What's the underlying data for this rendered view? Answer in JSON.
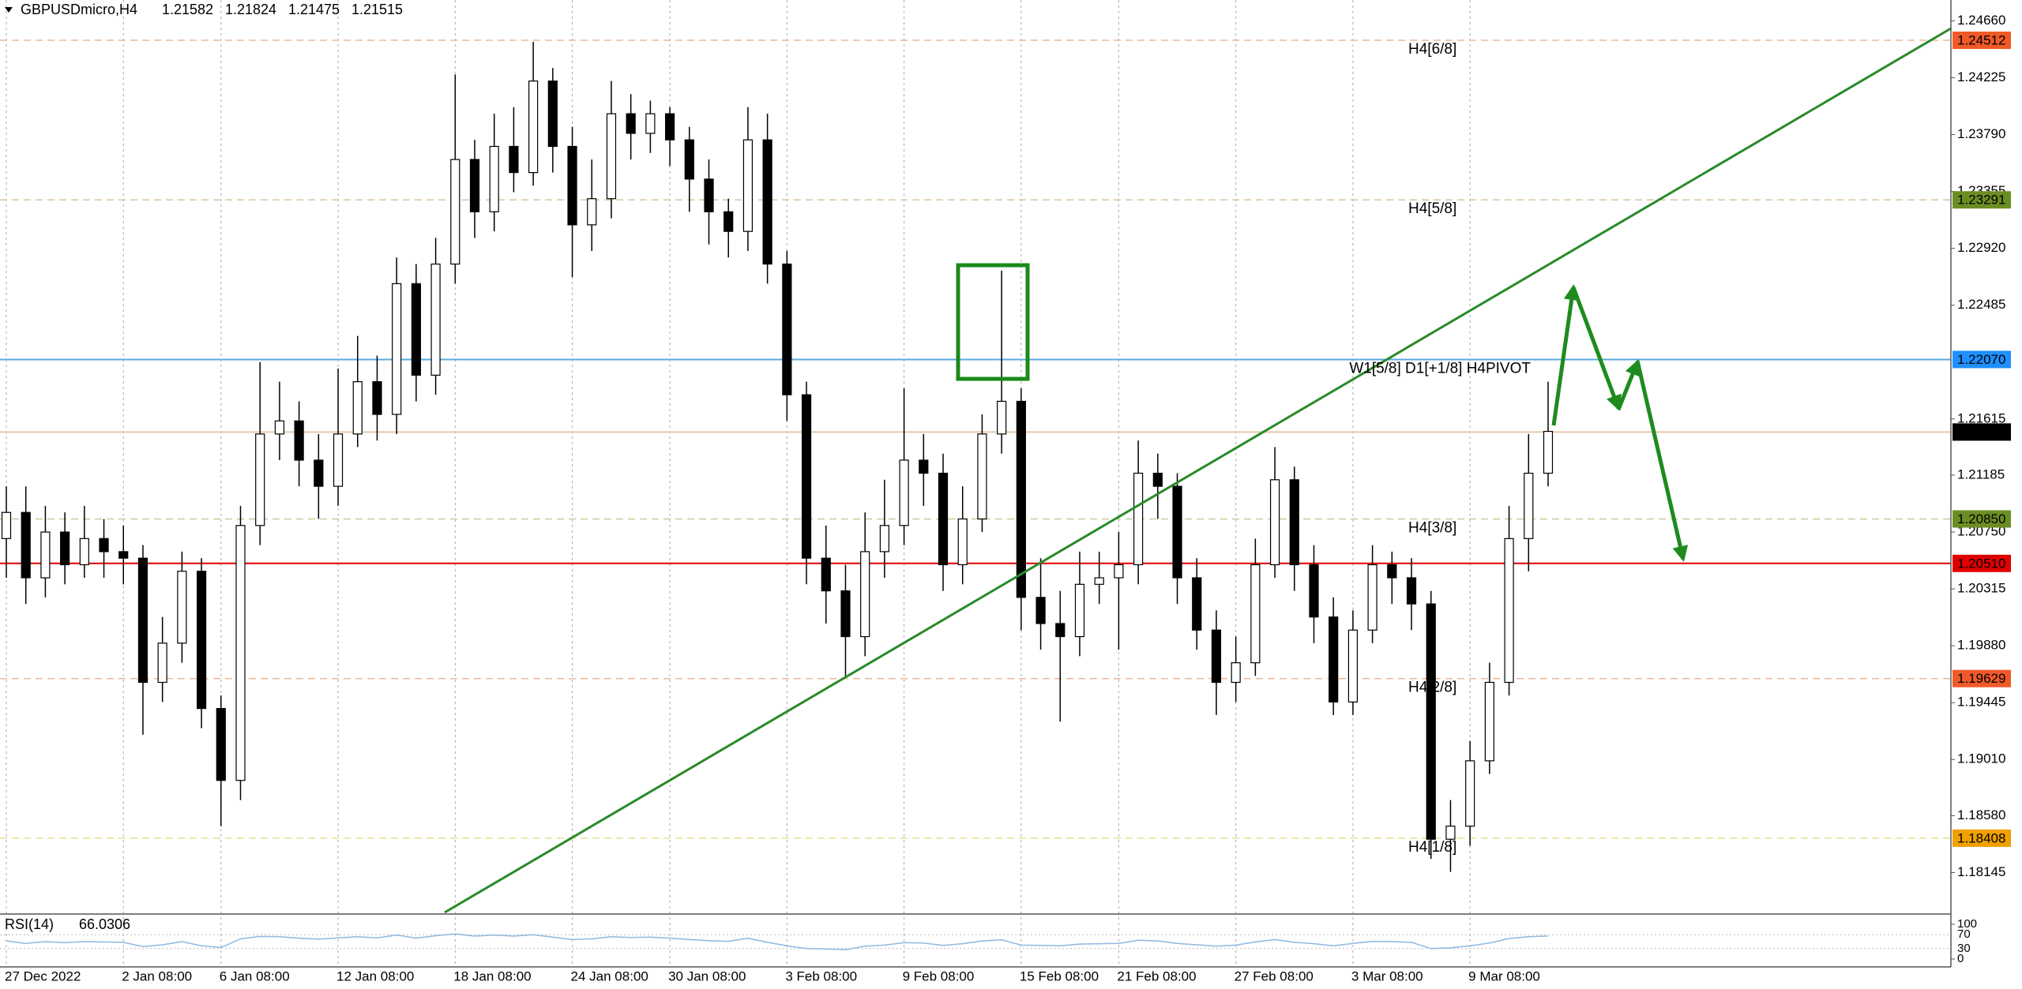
{
  "chart_data": {
    "type": "candlestick",
    "symbol": "GBPUSDmicro,H4",
    "quote": [
      1.21582,
      1.21824,
      1.21475,
      1.21515
    ],
    "categories": [
      "27 Dec 2022",
      null,
      null,
      null,
      null,
      null,
      "2 Jan 08:00",
      null,
      null,
      null,
      null,
      "6 Jan 08:00",
      null,
      null,
      null,
      null,
      null,
      "12 Jan 08:00",
      null,
      null,
      null,
      null,
      null,
      "18 Jan 08:00",
      null,
      null,
      null,
      null,
      null,
      "24 Jan 08:00",
      null,
      null,
      null,
      null,
      "30 Jan 08:00",
      null,
      null,
      null,
      null,
      null,
      "3 Feb 08:00",
      null,
      null,
      null,
      null,
      null,
      "9 Feb 08:00",
      null,
      null,
      null,
      null,
      null,
      "15 Feb 08:00",
      null,
      null,
      null,
      null,
      "21 Feb 08:00",
      null,
      null,
      null,
      null,
      null,
      "27 Feb 08:00",
      null,
      null,
      null,
      null,
      null,
      "3 Mar 08:00",
      null,
      null,
      null,
      null,
      null,
      "9 Mar 08:00",
      null,
      null,
      null,
      null
    ],
    "open": [
      1.207,
      1.209,
      1.204,
      1.2075,
      1.205,
      1.207,
      1.206,
      1.2055,
      1.196,
      1.199,
      1.2045,
      1.194,
      1.1885,
      1.208,
      1.215,
      1.216,
      1.213,
      1.211,
      1.215,
      1.219,
      1.2165,
      1.2265,
      1.2195,
      1.228,
      1.236,
      1.232,
      1.237,
      1.235,
      1.242,
      1.237,
      1.231,
      1.233,
      1.2395,
      1.238,
      1.2395,
      1.2375,
      1.2345,
      1.232,
      1.2305,
      1.2375,
      1.228,
      1.218,
      1.2055,
      1.203,
      1.1995,
      1.206,
      1.208,
      1.213,
      1.212,
      1.205,
      1.2085,
      1.215,
      1.2175,
      1.2025,
      1.2005,
      1.1995,
      1.2035,
      1.204,
      1.205,
      1.212,
      1.211,
      1.204,
      1.2,
      1.196,
      1.1975,
      1.205,
      1.2115,
      1.205,
      1.201,
      1.1945,
      1.2,
      1.205,
      1.204,
      1.202,
      1.184,
      1.185,
      1.19,
      1.196,
      1.207,
      1.212
    ],
    "high": [
      1.211,
      1.211,
      1.2095,
      1.209,
      1.2095,
      1.2085,
      1.208,
      1.2065,
      1.201,
      1.206,
      1.2055,
      1.195,
      1.2095,
      1.2205,
      1.219,
      1.2175,
      1.215,
      1.22,
      1.2225,
      1.221,
      1.2285,
      1.228,
      1.23,
      1.2425,
      1.2375,
      1.2395,
      1.24,
      1.245,
      1.243,
      1.2385,
      1.236,
      1.242,
      1.241,
      1.2405,
      1.24,
      1.2385,
      1.236,
      1.233,
      1.24,
      1.2395,
      1.229,
      1.219,
      1.208,
      1.205,
      1.209,
      1.2115,
      1.2185,
      1.215,
      1.2135,
      1.211,
      1.2165,
      1.2275,
      1.2185,
      1.2055,
      1.203,
      1.206,
      1.206,
      1.2075,
      1.2145,
      1.2135,
      1.212,
      1.2055,
      1.2015,
      1.1995,
      1.207,
      1.214,
      1.2125,
      1.2065,
      1.2025,
      1.2015,
      1.2065,
      1.206,
      1.2055,
      1.203,
      1.187,
      1.1915,
      1.1975,
      1.2095,
      1.215,
      1.219
    ],
    "low": [
      1.204,
      1.202,
      1.2025,
      1.2035,
      1.204,
      1.204,
      1.2035,
      1.192,
      1.1945,
      1.1975,
      1.1925,
      1.185,
      1.187,
      1.2065,
      1.213,
      1.211,
      1.2085,
      1.2095,
      1.214,
      1.2145,
      1.215,
      1.2175,
      1.218,
      1.2265,
      1.23,
      1.2305,
      1.2335,
      1.234,
      1.235,
      1.227,
      1.229,
      1.2315,
      1.236,
      1.2365,
      1.2355,
      1.232,
      1.2295,
      1.2285,
      1.229,
      1.2265,
      1.216,
      1.2035,
      1.2005,
      1.1965,
      1.198,
      1.204,
      1.2065,
      1.2095,
      1.203,
      1.2035,
      1.2075,
      1.2135,
      1.2,
      1.1985,
      1.193,
      1.198,
      1.202,
      1.1985,
      1.2035,
      1.2085,
      1.202,
      1.1985,
      1.1935,
      1.1945,
      1.1965,
      1.204,
      1.203,
      1.199,
      1.1935,
      1.1935,
      1.199,
      1.202,
      1.2,
      1.1825,
      1.1815,
      1.1835,
      1.189,
      1.195,
      1.2045,
      1.211
    ],
    "close": [
      1.209,
      1.204,
      1.2075,
      1.205,
      1.207,
      1.206,
      1.2055,
      1.196,
      1.199,
      1.2045,
      1.194,
      1.1885,
      1.208,
      1.215,
      1.216,
      1.213,
      1.211,
      1.215,
      1.219,
      1.2165,
      1.2265,
      1.2195,
      1.228,
      1.236,
      1.232,
      1.237,
      1.235,
      1.242,
      1.237,
      1.231,
      1.233,
      1.2395,
      1.238,
      1.2395,
      1.2375,
      1.2345,
      1.232,
      1.2305,
      1.2375,
      1.228,
      1.218,
      1.2055,
      1.203,
      1.1995,
      1.206,
      1.208,
      1.213,
      1.212,
      1.205,
      1.2085,
      1.215,
      1.2175,
      1.2025,
      1.2005,
      1.1995,
      1.2035,
      1.204,
      1.205,
      1.212,
      1.211,
      1.204,
      1.2,
      1.196,
      1.1975,
      1.205,
      1.2115,
      1.205,
      1.201,
      1.1945,
      1.2,
      1.205,
      1.204,
      1.202,
      1.184,
      1.185,
      1.19,
      1.196,
      1.207,
      1.212,
      1.2152
    ],
    "ylim": [
      1.1784,
      1.2482
    ],
    "yticks": [
      {
        "value": 1.2466,
        "label": "1.24660"
      },
      1.24225,
      {
        "value": 1.2379,
        "label": "1.23790"
      },
      1.23355,
      {
        "value": 1.2292,
        "label": "1.22920"
      },
      1.22485,
      1.21615,
      1.21185,
      {
        "value": 1.2075,
        "label": "1.20750"
      },
      1.20315,
      {
        "value": 1.1988,
        "label": "1.19880"
      },
      1.19445,
      {
        "value": 1.1901,
        "label": "1.19010"
      },
      {
        "value": 1.1858,
        "label": "1.18580"
      },
      1.18145
    ],
    "levels": [
      {
        "value": 1.24512,
        "text": "H4[6/8]",
        "line_color": "#e8b89a",
        "text_color": "#e0622a",
        "color": "#f05a28",
        "dash": true
      },
      {
        "value": 1.23291,
        "text": "H4[5/8]",
        "line_color": "#d8c4a0",
        "text_color": "#6b8e23",
        "color": "#6b8e23",
        "dash": true
      },
      {
        "value": 1.2207,
        "value_label": "1.22070",
        "text": "W1[5/8] D1[+1/8] H4PIVOT",
        "line_color": "#5aa8e0",
        "text_color": "#3a9ad9",
        "color": "#1e90ff",
        "dash": false
      },
      {
        "value": 1.21515,
        "line_color": "#e8c8a8",
        "color": "#000000",
        "dash": false
      },
      {
        "value": 1.2085,
        "value_label": "1.20850",
        "text": "H4[3/8]",
        "line_color": "#c8cc9a",
        "text_color": "#6b8e23",
        "color": "#6b8e23",
        "dash": true
      },
      {
        "value": 1.2051,
        "value_label": "1.20510",
        "line_color": "#e00000",
        "color": "#e00000",
        "dash": false
      },
      {
        "value": 1.19629,
        "text": "H4[2/8]",
        "line_color": "#e8b89a",
        "text_color": "#e0622a",
        "color": "#f05a28",
        "dash": true
      },
      {
        "value": 1.18408,
        "text": "H4[1/8]",
        "line_color": "#e8e090",
        "text_color": "#f0a000",
        "color": "#f0a000",
        "dash": true
      }
    ],
    "indicator": {
      "name": "RSI(14)",
      "value": 66.0306,
      "color": "#8fb8e0",
      "values": [
        52,
        45,
        50,
        47,
        50,
        49,
        48,
        36,
        41,
        50,
        38,
        33,
        58,
        65,
        64,
        60,
        57,
        61,
        64,
        61,
        69,
        60,
        67,
        72,
        66,
        69,
        66,
        70,
        63,
        56,
        58,
        64,
        62,
        63,
        60,
        56,
        53,
        51,
        60,
        48,
        38,
        30,
        29,
        27,
        37,
        40,
        47,
        46,
        39,
        44,
        52,
        55,
        40,
        39,
        38,
        43,
        44,
        45,
        54,
        52,
        45,
        41,
        37,
        40,
        49,
        56,
        48,
        44,
        38,
        45,
        51,
        50,
        48,
        30,
        32,
        38,
        46,
        59,
        64,
        66.0306
      ],
      "ylim": [
        0,
        100
      ],
      "yticks": [
        100,
        70,
        30,
        0
      ]
    }
  }
}
